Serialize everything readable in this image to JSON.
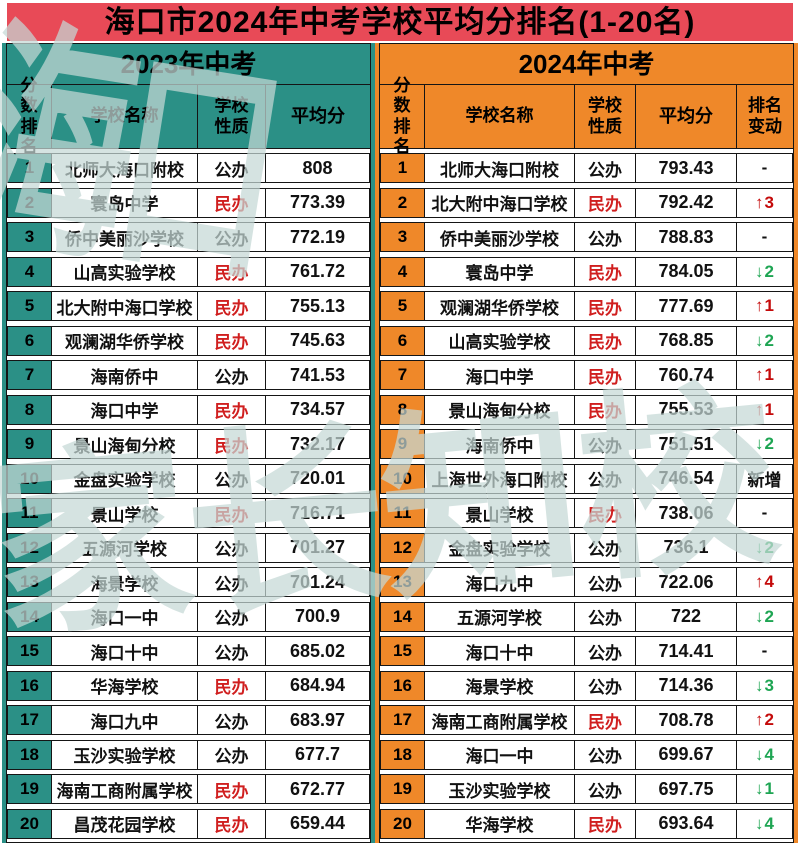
{
  "title": "海口市2024年中考学校平均分排名(1-20名)",
  "watermarks": {
    "top": "海口",
    "middle": "家长知校"
  },
  "icons": {
    "up_arrow": "↑",
    "down_arrow": "↓"
  },
  "colors": {
    "title_bg": "#e84a57",
    "left_accent_teal": "#2b9086",
    "right_accent_orange": "#ef8829",
    "private_school_red": "#d01f1f",
    "rank_up_red": "#c40a0a",
    "rank_down_green": "#1ea553"
  },
  "chart_data": {
    "type": "table",
    "title": "海口市2024年中考学校平均分排名(1-20名)",
    "tables": [
      {
        "section_title": "2023年中考",
        "headers": [
          "分数排名",
          "学校名称",
          "学校性质",
          "平均分"
        ],
        "rows": [
          {
            "rank": "1",
            "school": "北师大海口附校",
            "type": "公办",
            "score": "808"
          },
          {
            "rank": "2",
            "school": "寰岛中学",
            "type": "民办",
            "score": "773.39"
          },
          {
            "rank": "3",
            "school": "侨中美丽沙学校",
            "type": "公办",
            "score": "772.19"
          },
          {
            "rank": "4",
            "school": "山高实验学校",
            "type": "民办",
            "score": "761.72"
          },
          {
            "rank": "5",
            "school": "北大附中海口学校",
            "type": "民办",
            "score": "755.13"
          },
          {
            "rank": "6",
            "school": "观澜湖华侨学校",
            "type": "民办",
            "score": "745.63"
          },
          {
            "rank": "7",
            "school": "海南侨中",
            "type": "公办",
            "score": "741.53"
          },
          {
            "rank": "8",
            "school": "海口中学",
            "type": "民办",
            "score": "734.57"
          },
          {
            "rank": "9",
            "school": "景山海甸分校",
            "type": "民办",
            "score": "732.17"
          },
          {
            "rank": "10",
            "school": "金盘实验学校",
            "type": "公办",
            "score": "720.01"
          },
          {
            "rank": "11",
            "school": "景山学校",
            "type": "民办",
            "score": "716.71"
          },
          {
            "rank": "12",
            "school": "五源河学校",
            "type": "公办",
            "score": "701.27"
          },
          {
            "rank": "13",
            "school": "海景学校",
            "type": "公办",
            "score": "701.24"
          },
          {
            "rank": "14",
            "school": "海口一中",
            "type": "公办",
            "score": "700.9"
          },
          {
            "rank": "15",
            "school": "海口十中",
            "type": "公办",
            "score": "685.02"
          },
          {
            "rank": "16",
            "school": "华海学校",
            "type": "民办",
            "score": "684.94"
          },
          {
            "rank": "17",
            "school": "海口九中",
            "type": "公办",
            "score": "683.97"
          },
          {
            "rank": "18",
            "school": "玉沙实验学校",
            "type": "公办",
            "score": "677.7"
          },
          {
            "rank": "19",
            "school": "海南工商附属学校",
            "type": "民办",
            "score": "672.77"
          },
          {
            "rank": "20",
            "school": "昌茂花园学校",
            "type": "民办",
            "score": "659.44"
          }
        ]
      },
      {
        "section_title": "2024年中考",
        "headers": [
          "分数排名",
          "学校名称",
          "学校性质",
          "平均分",
          "排名变动"
        ],
        "rows": [
          {
            "rank": "1",
            "school": "北师大海口附校",
            "type": "公办",
            "score": "793.43",
            "change": "-",
            "dir": "same"
          },
          {
            "rank": "2",
            "school": "北大附中海口学校",
            "type": "民办",
            "score": "792.42",
            "change": "3",
            "dir": "up"
          },
          {
            "rank": "3",
            "school": "侨中美丽沙学校",
            "type": "公办",
            "score": "788.83",
            "change": "-",
            "dir": "same"
          },
          {
            "rank": "4",
            "school": "寰岛中学",
            "type": "民办",
            "score": "784.05",
            "change": "2",
            "dir": "down"
          },
          {
            "rank": "5",
            "school": "观澜湖华侨学校",
            "type": "民办",
            "score": "777.69",
            "change": "1",
            "dir": "up"
          },
          {
            "rank": "6",
            "school": "山高实验学校",
            "type": "民办",
            "score": "768.85",
            "change": "2",
            "dir": "down"
          },
          {
            "rank": "7",
            "school": "海口中学",
            "type": "民办",
            "score": "760.74",
            "change": "1",
            "dir": "up"
          },
          {
            "rank": "8",
            "school": "景山海甸分校",
            "type": "民办",
            "score": "755.53",
            "change": "1",
            "dir": "up"
          },
          {
            "rank": "9",
            "school": "海南侨中",
            "type": "公办",
            "score": "751.51",
            "change": "2",
            "dir": "down"
          },
          {
            "rank": "10",
            "school": "上海世外海口附校",
            "type": "公办",
            "score": "746.54",
            "change": "新增",
            "dir": "new"
          },
          {
            "rank": "11",
            "school": "景山学校",
            "type": "民办",
            "score": "738.06",
            "change": "-",
            "dir": "same"
          },
          {
            "rank": "12",
            "school": "金盘实验学校",
            "type": "公办",
            "score": "736.1",
            "change": "2",
            "dir": "down"
          },
          {
            "rank": "13",
            "school": "海口九中",
            "type": "公办",
            "score": "722.06",
            "change": "4",
            "dir": "up"
          },
          {
            "rank": "14",
            "school": "五源河学校",
            "type": "公办",
            "score": "722",
            "change": "2",
            "dir": "down"
          },
          {
            "rank": "15",
            "school": "海口十中",
            "type": "公办",
            "score": "714.41",
            "change": "-",
            "dir": "same"
          },
          {
            "rank": "16",
            "school": "海景学校",
            "type": "公办",
            "score": "714.36",
            "change": "3",
            "dir": "down"
          },
          {
            "rank": "17",
            "school": "海南工商附属学校",
            "type": "民办",
            "score": "708.78",
            "change": "2",
            "dir": "up"
          },
          {
            "rank": "18",
            "school": "海口一中",
            "type": "公办",
            "score": "699.67",
            "change": "4",
            "dir": "down"
          },
          {
            "rank": "19",
            "school": "玉沙实验学校",
            "type": "公办",
            "score": "697.75",
            "change": "1",
            "dir": "down"
          },
          {
            "rank": "20",
            "school": "华海学校",
            "type": "民办",
            "score": "693.64",
            "change": "4",
            "dir": "down"
          }
        ]
      }
    ]
  }
}
